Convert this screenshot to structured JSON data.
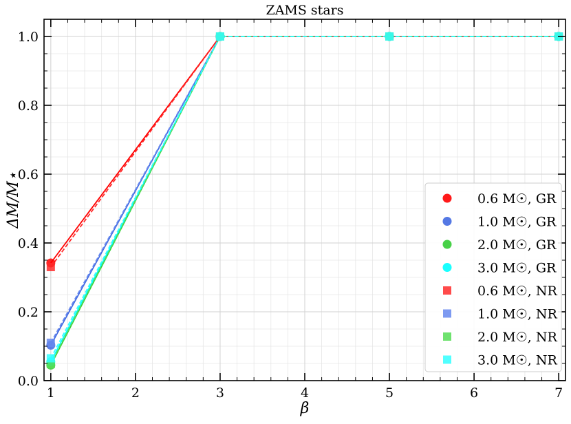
{
  "chart_data": {
    "type": "line",
    "title": "ZAMS stars",
    "xlabel": "β",
    "ylabel": "ΔM/M⋆",
    "xlim": [
      0.92,
      7.08
    ],
    "ylim": [
      0.0,
      1.05
    ],
    "xticks": [
      1,
      2,
      3,
      4,
      5,
      6,
      7
    ],
    "xtick_labels": [
      "1",
      "2",
      "3",
      "4",
      "5",
      "6",
      "7"
    ],
    "yticks": [
      0.0,
      0.2,
      0.4,
      0.6,
      0.8,
      1.0
    ],
    "ytick_labels": [
      "0.0",
      "0.2",
      "0.4",
      "0.6",
      "0.8",
      "1.0"
    ],
    "grid": true,
    "legend_position": "lower-right",
    "series": [
      {
        "name": "0.6 M☉, GR",
        "marker": "circle",
        "line": "solid",
        "color": "#ff0000",
        "x": [
          1,
          3,
          5,
          7
        ],
        "y": [
          0.342,
          1.0,
          1.0,
          1.0
        ]
      },
      {
        "name": "1.0 M☉, GR",
        "marker": "circle",
        "line": "solid",
        "color": "#4169e1",
        "x": [
          1,
          3,
          5,
          7
        ],
        "y": [
          0.103,
          1.0,
          1.0,
          1.0
        ]
      },
      {
        "name": "2.0 M☉, GR",
        "marker": "circle",
        "line": "solid",
        "color": "#33cc33",
        "x": [
          1,
          3,
          5,
          7
        ],
        "y": [
          0.045,
          1.0,
          1.0,
          1.0
        ]
      },
      {
        "name": "3.0 M☉, GR",
        "marker": "circle",
        "line": "solid",
        "color": "#00ffff",
        "x": [
          1,
          3,
          5,
          7
        ],
        "y": [
          0.055,
          1.0,
          1.0,
          1.0
        ]
      },
      {
        "name": "0.6 M☉, NR",
        "marker": "square",
        "line": "dashed",
        "color": "#ff2a2a",
        "x": [
          1,
          3,
          5,
          7
        ],
        "y": [
          0.33,
          1.0,
          1.0,
          1.0
        ]
      },
      {
        "name": "1.0 M☉, NR",
        "marker": "square",
        "line": "dashed",
        "color": "#6688ee",
        "x": [
          1,
          3,
          5,
          7
        ],
        "y": [
          0.11,
          1.0,
          1.0,
          1.0
        ]
      },
      {
        "name": "2.0 M☉, NR",
        "marker": "square",
        "line": "dashed",
        "color": "#55dd55",
        "x": [
          1,
          3,
          5,
          7
        ],
        "y": [
          0.048,
          1.0,
          1.0,
          1.0
        ]
      },
      {
        "name": "3.0 M☉, NR",
        "marker": "square",
        "line": "dashed",
        "color": "#33ffff",
        "x": [
          1,
          3,
          5,
          7
        ],
        "y": [
          0.065,
          1.0,
          1.0,
          1.0
        ]
      }
    ]
  }
}
